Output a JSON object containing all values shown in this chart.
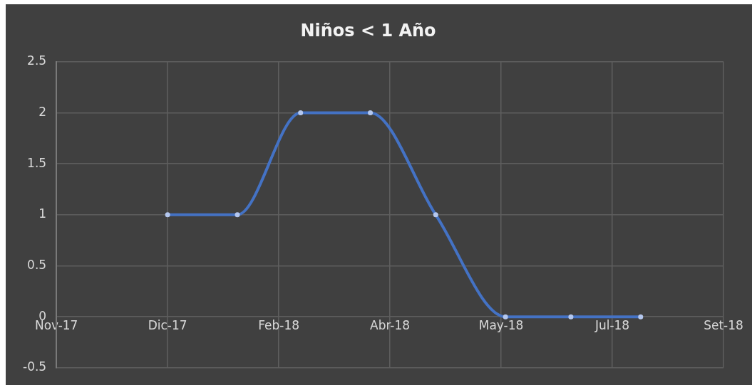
{
  "chart_data": {
    "type": "line",
    "title": "Niños < 1 Año",
    "x": [
      "2017-12-22",
      "2018-01-23",
      "2018-02-21",
      "2018-03-25",
      "2018-04-24",
      "2018-05-26",
      "2018-06-25",
      "2018-07-27"
    ],
    "series": [
      {
        "color": "#4472c4",
        "values": [
          1,
          1,
          2,
          2,
          1,
          0,
          0,
          0
        ]
      }
    ],
    "xlim": [
      "2017-11-01",
      "2018-09-03"
    ],
    "xticks": [
      {
        "value": "2017-11-01",
        "label": "Nov-17"
      },
      {
        "value": "2017-12-22",
        "label": "Dic-17"
      },
      {
        "value": "2018-02-11",
        "label": "Feb-18"
      },
      {
        "value": "2018-04-03",
        "label": "Abr-18"
      },
      {
        "value": "2018-05-24",
        "label": "May-18"
      },
      {
        "value": "2018-07-14",
        "label": "Jul-18"
      },
      {
        "value": "2018-09-03",
        "label": "Set-18"
      }
    ],
    "ylim": [
      -0.5,
      2.5
    ],
    "yticks": [
      -0.5,
      0,
      0.5,
      1,
      1.5,
      2,
      2.5
    ],
    "grid": true,
    "marker": "circle",
    "line_style": "solid",
    "legend": false
  }
}
